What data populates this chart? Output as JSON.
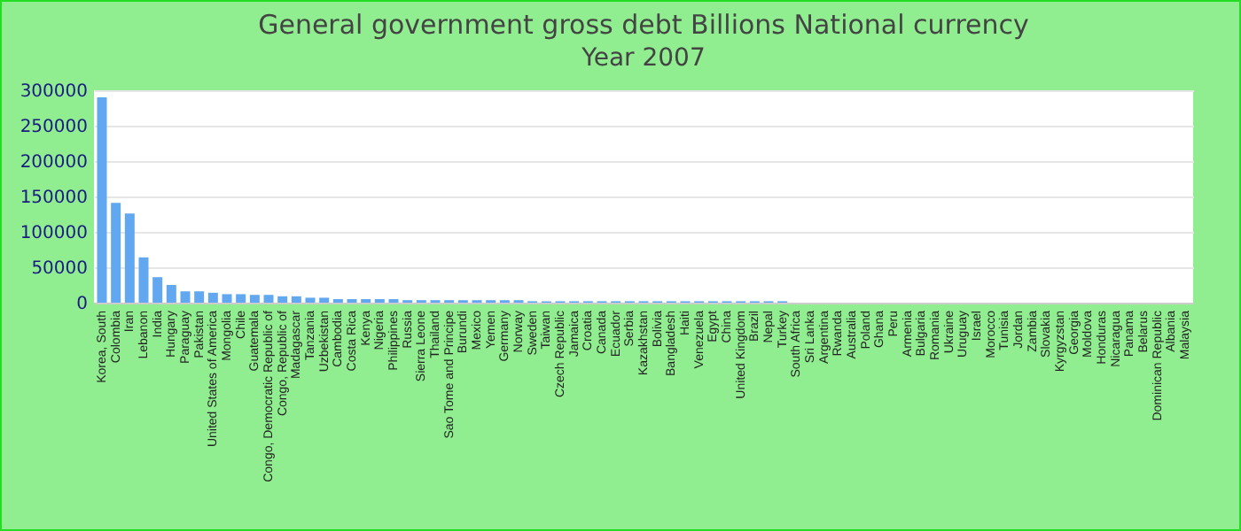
{
  "chart_data": {
    "type": "bar",
    "title": "General government gross debt Billions National currency",
    "subtitle": "Year 2007",
    "categories": [
      "Korea, South",
      "Colombia",
      "Iran",
      "Lebanon",
      "India",
      "Hungary",
      "Paraguay",
      "Pakistan",
      "United States of America",
      "Mongolia",
      "Chile",
      "Guatemala",
      "Congo, Democratic Republic of",
      "Congo, Republic of",
      "Madagascar",
      "Tanzania",
      "Uzbekistan",
      "Cambodia",
      "Costa Rica",
      "Kenya",
      "Nigeria",
      "Philippines",
      "Russia",
      "Sierra Leone",
      "Thailand",
      "Sao Tome and Principe",
      "Burundi",
      "Mexico",
      "Yemen",
      "Germany",
      "Norway",
      "Sweden",
      "Taiwan",
      "Czech Republic",
      "Jamaica",
      "Croatia",
      "Canada",
      "Ecuador",
      "Serbia",
      "Kazakhstan",
      "Bolivia",
      "Bangladesh",
      "Haiti",
      "Venezuela",
      "Egypt",
      "China",
      "United Kingdom",
      "Brazil",
      "Nepal",
      "Turkey",
      "South Africa",
      "Sri Lanka",
      "Argentina",
      "Rwanda",
      "Australia",
      "Poland",
      "Ghana",
      "Peru",
      "Armenia",
      "Bulgaria",
      "Romania",
      "Ukraine",
      "Uruguay",
      "Israel",
      "Morocco",
      "Tunisia",
      "Jordan",
      "Zambia",
      "Slovakia",
      "Kyrgyzstan",
      "Georgia",
      "Moldova",
      "Honduras",
      "Nicaragua",
      "Panama",
      "Belarus",
      "Dominican Republic",
      "Albania",
      "Malaysia"
    ],
    "values": [
      290000,
      141000,
      126000,
      64000,
      36000,
      25000,
      16000,
      16000,
      14000,
      12000,
      12000,
      11000,
      11000,
      9000,
      9000,
      7000,
      7000,
      5000,
      5000,
      5000,
      5000,
      5000,
      3500,
      3500,
      3500,
      3500,
      3500,
      3500,
      3500,
      3500,
      3500,
      2000,
      2000,
      2000,
      2000,
      2000,
      2000,
      2000,
      2000,
      2000,
      2000,
      2000,
      2000,
      2000,
      2000,
      2000,
      2000,
      2000,
      2000,
      2000,
      0,
      0,
      0,
      0,
      0,
      0,
      0,
      0,
      0,
      0,
      0,
      0,
      0,
      0,
      0,
      0,
      0,
      0,
      0,
      0,
      0,
      0,
      0,
      0,
      0,
      0,
      0,
      0,
      0
    ],
    "color": "#62a8f0",
    "ylim": [
      0,
      300000
    ],
    "yticks": [
      0,
      50000,
      100000,
      150000,
      200000,
      250000,
      300000
    ],
    "grid": "y"
  }
}
